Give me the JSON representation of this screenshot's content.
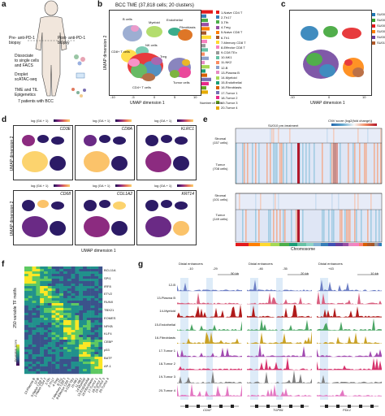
{
  "panel_letters": [
    "a",
    "b",
    "c",
    "d",
    "e",
    "f",
    "g"
  ],
  "panel_a": {
    "label_pre": "Pre- anti-PD-1",
    "label_pre2": "biopsy",
    "label_post": "Post- anti-PD-1",
    "label_post2": "biopsy",
    "step1": "Dissociate",
    "step1b": "to single cells",
    "step1c": "and FACS",
    "step2": "Droplet",
    "step2b": "scATAC-seq",
    "step3": "TME and TIL",
    "step3b": "Epigenetics",
    "patients": "7 patients with BCC"
  },
  "panel_b": {
    "title": "BCC TME (37,818 cells; 20 clusters)",
    "xlabel": "UMAP dimension 1",
    "ylabel": "UMAP dimension 2",
    "bar_xlabel": "Number of cells",
    "bar_ticks": [
      "0",
      "2,000",
      "4,000"
    ],
    "x_ticks": [
      "-10",
      "-5",
      "0",
      "5",
      "10"
    ],
    "y_ticks": [
      "10",
      "5",
      "0",
      "-5",
      "-10"
    ],
    "annotations": [
      "B cells",
      "Myeloid",
      "Endothelial",
      "Fibroblasts",
      "CD8+ T cells",
      "NK cells",
      "Treg",
      "CD4+ T cells",
      "Tumor cells"
    ],
    "clusters": [
      {
        "name": "1-Naive CD4 T",
        "color": "#e41a1c"
      },
      {
        "name": "2-Th17",
        "color": "#377eb8"
      },
      {
        "name": "3-Tfh",
        "color": "#4daf4a"
      },
      {
        "name": "4-Treg",
        "color": "#984ea3"
      },
      {
        "name": "5-Naive CD8 T",
        "color": "#ff7f00"
      },
      {
        "name": "6-Th1",
        "color": "#a65628"
      },
      {
        "name": "7-Memory CD8 T",
        "color": "#ffd92f"
      },
      {
        "name": "8-Effector CD8 T",
        "color": "#f781bf"
      },
      {
        "name": "9-CD8 TEx",
        "color": "#999999"
      },
      {
        "name": "10-NK1",
        "color": "#66c2a5"
      },
      {
        "name": "11-NK2",
        "color": "#fc8d62"
      },
      {
        "name": "12-B",
        "color": "#8da0cb"
      },
      {
        "name": "13-Plasma B",
        "color": "#e78ac3"
      },
      {
        "name": "14-Myeloid",
        "color": "#a6d854"
      },
      {
        "name": "15-Endothelial",
        "color": "#1b9e77"
      },
      {
        "name": "16-Fibroblasts",
        "color": "#d95f02"
      },
      {
        "name": "17-Tumor 1",
        "color": "#7570b3"
      },
      {
        "name": "18-Tumor 2",
        "color": "#e7298a"
      },
      {
        "name": "19-Tumor 3",
        "color": "#66a61e"
      },
      {
        "name": "20-Tumor 4",
        "color": "#e6ab02"
      }
    ]
  },
  "panel_c": {
    "xlabel": "UMAP dimension 1",
    "ylabel": "UMAP dimension 2",
    "x_ticks": [
      "-10",
      "-5",
      "0",
      "5",
      "10"
    ],
    "samples": [
      {
        "name": "SU001",
        "color": "#1f78b4"
      },
      {
        "name": "SU005",
        "color": "#33a02c"
      },
      {
        "name": "SU006",
        "color": "#e31a1c"
      },
      {
        "name": "SU008",
        "color": "#ff7f00"
      },
      {
        "name": "SU009",
        "color": "#6a3d9a"
      },
      {
        "name": "SU010",
        "color": "#b15928"
      }
    ]
  },
  "panel_d": {
    "scale_label": "log (GA + 1)",
    "genes_row1": [
      "CD3E",
      "CD8A",
      "KLRC1"
    ],
    "genes_row2": [
      "CD68",
      "COL1A2",
      "KRT14"
    ],
    "xlabel": "UMAP dimension 1",
    "ylabel": "UMAP dimension 2"
  },
  "panel_e": {
    "title1": "SU010 pre-treatment",
    "title2": "SU010 post-treatment",
    "cnv_label": "CNV score (log2(fold change))",
    "rows": [
      {
        "label": "Stromal",
        "n": "(157 cells)"
      },
      {
        "label": "Tumor",
        "n": "(708 cells)"
      },
      {
        "label": "Stromal",
        "n": "(101 cells)"
      },
      {
        "label": "Tumor",
        "n": "(149 cells)"
      }
    ],
    "chromosomes": [
      "1",
      "2",
      "3",
      "4",
      "5",
      "6",
      "7",
      "8",
      "9",
      "10",
      "11",
      "12",
      "13",
      "14",
      "15",
      "16",
      "17",
      "18",
      "19",
      "20",
      "21",
      "22"
    ],
    "xlabel": "Chromosome",
    "cnv_ticks": [
      "-1.0",
      "-0.5",
      "0",
      "0.5",
      "1.0"
    ]
  },
  "panel_f": {
    "ylabel": "250 variable TF motifs",
    "motif_labels": [
      "BCL11A",
      "SPI1",
      "IRF8",
      "ETV2",
      "RUNX",
      "TBX21",
      "EOMES",
      "NFKB",
      "KLF4",
      "CEBP",
      "p53",
      "BATF",
      "AP-1"
    ],
    "cluster_labels": [
      "13-Plasma B",
      "12-B",
      "5-Naive CD8 T",
      "1-Naive CD4 T",
      "3-Tfh",
      "2-Th17",
      "4-Treg",
      "6-Th1",
      "7-Memory CD8 T",
      "8-Effector CD8 T",
      "9-CD8 TEx",
      "10-NK1",
      "11-NK2",
      "14-Myeloid",
      "15-Endothelial",
      "16-Fibroblasts",
      "17-Tumor 1",
      "18-Tumor 2",
      "19-Tumor 3",
      "20-Tumor 4"
    ],
    "scale_label": "Deviation score",
    "scale_ticks": [
      "2",
      "0",
      "-2"
    ]
  },
  "panel_g": {
    "tracks": [
      "12-B",
      "13-Plasma B",
      "14-Myeloid",
      "15-Endothelial",
      "16-Fibroblasts",
      "17-Tumor 1",
      "18-Tumor 2",
      "19-Tumor 3",
      "20-Tumor 4"
    ],
    "loci": [
      {
        "header": "Distal enhancers",
        "marks": [
          "-10",
          "-29"
        ],
        "scale": "50 kb",
        "gene": "CD47"
      },
      {
        "header": "Distal enhancers",
        "marks": [
          "-46",
          "-35"
        ],
        "scale": "20 kb",
        "gene": "TGFB1"
      },
      {
        "header": "Distal enhancers",
        "marks": [
          "+43"
        ],
        "scale": "10 kb",
        "gene": "PDL1"
      }
    ],
    "track_colors": [
      "#6b7dc4",
      "#d95f7f",
      "#b01a1a",
      "#4aa564",
      "#c9a227",
      "#a24ab0",
      "#d6336c",
      "#7f7f7f",
      "#e377c2"
    ]
  }
}
